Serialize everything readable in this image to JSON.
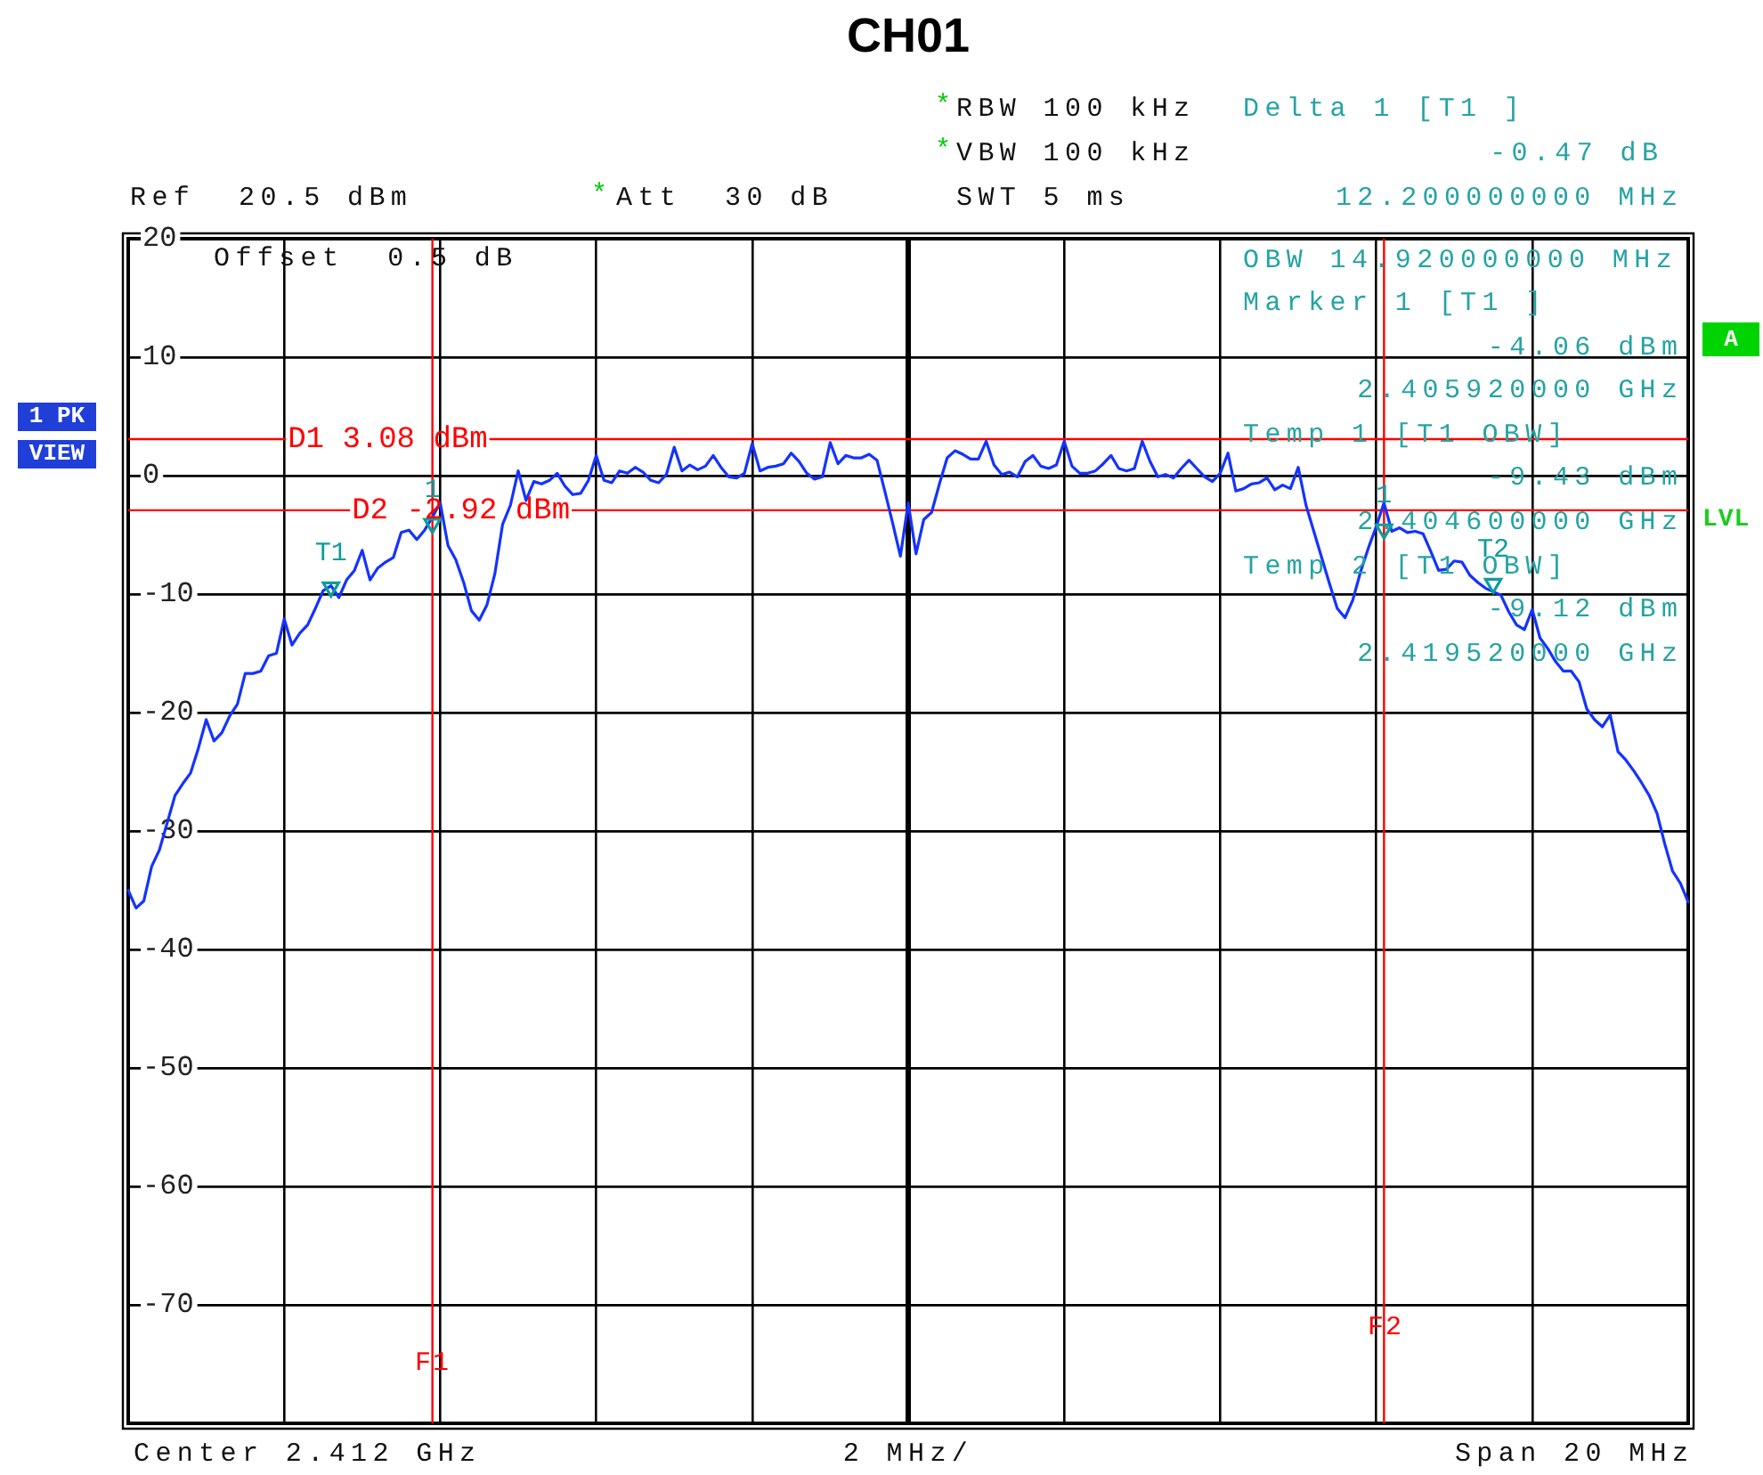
{
  "chart_data": {
    "type": "line",
    "title": "CH01",
    "xlabel": "2 MHz/",
    "categories": [
      null,
      null,
      null,
      null,
      null,
      null,
      null,
      null,
      null,
      null,
      null,
      null,
      null,
      null,
      null,
      null,
      null,
      null,
      null,
      null,
      null,
      null,
      null,
      null,
      null,
      null,
      null,
      null,
      null,
      null,
      null,
      null,
      null,
      null,
      null,
      null,
      null,
      null,
      null,
      null,
      null,
      null,
      null,
      null,
      null,
      null,
      null,
      null,
      null,
      null,
      null,
      null,
      null,
      null,
      null,
      null,
      null,
      null,
      null,
      null,
      null,
      null,
      null,
      null,
      null,
      null,
      null,
      null,
      null,
      null,
      null,
      null,
      null,
      null,
      null,
      null,
      null,
      null,
      null,
      null,
      null,
      null,
      null,
      null,
      null,
      null,
      null,
      null,
      null,
      null,
      null,
      null,
      null,
      null,
      null,
      null,
      null,
      null,
      null,
      null,
      null,
      null,
      null,
      null,
      null,
      null,
      null,
      null,
      null,
      null,
      null,
      null,
      null,
      null,
      null,
      null,
      null,
      null,
      null,
      null,
      null,
      null,
      null,
      null,
      null,
      null,
      null,
      null,
      null,
      null,
      null,
      null,
      null,
      null,
      null,
      null,
      null,
      null,
      null,
      null,
      null,
      null,
      null,
      null,
      null,
      null,
      null,
      null,
      null,
      null,
      null,
      null,
      null,
      null,
      null,
      null,
      null,
      null,
      null,
      null,
      null,
      null,
      null,
      null,
      null,
      null,
      null,
      null,
      null,
      null,
      null,
      null,
      null,
      null,
      null,
      null,
      null,
      null,
      null,
      null,
      null,
      null,
      null,
      null,
      null,
      null,
      null,
      null,
      null,
      null,
      null,
      null,
      null,
      null,
      null,
      null,
      null,
      null,
      null,
      null,
      null
    ],
    "ylim": [
      -80,
      20
    ],
    "yticks": [
      20,
      10,
      0,
      -10,
      -20,
      -30,
      -40,
      -50,
      -60,
      -70
    ],
    "grid": true,
    "tick_labels": "y",
    "series": [
      {
        "color": "#1433ff",
        "values": [
          -35.0,
          -36.5,
          -35.9,
          -33.0,
          -31.6,
          -29.3,
          -27.0,
          -26.0,
          -25.1,
          -23.0,
          -20.6,
          -22.4,
          -21.7,
          -20.3,
          -19.3,
          -16.7,
          -16.7,
          -16.5,
          -15.2,
          -15.0,
          -12.1,
          -14.3,
          -13.3,
          -12.6,
          -11.2,
          -9.7,
          -9.3,
          -10.3,
          -8.8,
          -8.0,
          -6.3,
          -8.8,
          -7.8,
          -7.3,
          -6.9,
          -4.8,
          -4.6,
          -5.4,
          -4.6,
          -3.5,
          -2.3,
          -5.9,
          -7.1,
          -9.0,
          -11.4,
          -12.2,
          -10.9,
          -8.3,
          -4.1,
          -2.5,
          0.4,
          -2.1,
          -0.5,
          -0.7,
          -0.4,
          0.2,
          -0.9,
          -1.6,
          -1.5,
          -0.4,
          1.7,
          -0.4,
          -0.6,
          0.4,
          0.2,
          0.7,
          0.3,
          -0.4,
          -0.6,
          0.1,
          2.4,
          0.4,
          0.9,
          0.5,
          0.8,
          1.7,
          0.7,
          -0.1,
          -0.2,
          0.2,
          2.7,
          0.4,
          0.7,
          0.8,
          1.0,
          1.9,
          1.2,
          0.2,
          -0.3,
          -0.1,
          2.8,
          1.0,
          1.7,
          1.5,
          1.5,
          1.8,
          1.3,
          -1.3,
          -4.0,
          -6.8,
          -2.3,
          -6.6,
          -3.7,
          -3.1,
          -0.7,
          1.5,
          2.1,
          1.8,
          1.4,
          1.4,
          2.9,
          0.9,
          0.1,
          0.3,
          -0.1,
          1.2,
          1.7,
          0.8,
          0.6,
          0.9,
          2.9,
          0.8,
          0.2,
          0.2,
          0.4,
          1.0,
          1.7,
          0.6,
          0.4,
          0.6,
          2.9,
          1.2,
          -0.1,
          0.1,
          -0.2,
          0.6,
          1.3,
          0.6,
          -0.1,
          -0.5,
          0.2,
          1.9,
          -1.3,
          -1.1,
          -0.7,
          -0.6,
          -0.2,
          -1.2,
          -0.8,
          -1.1,
          0.7,
          -2.5,
          -4.7,
          -6.9,
          -9.1,
          -11.2,
          -12.0,
          -10.5,
          -8.1,
          -6.1,
          -4.3,
          -2.3,
          -4.7,
          -4.4,
          -4.8,
          -4.7,
          -4.9,
          -6.4,
          -8.0,
          -7.9,
          -7.2,
          -7.3,
          -8.4,
          -9.0,
          -9.5,
          -9.8,
          -10.1,
          -11.5,
          -12.6,
          -13.0,
          -11.3,
          -13.7,
          -14.6,
          -15.7,
          -16.5,
          -16.5,
          -17.4,
          -19.7,
          -20.6,
          -21.2,
          -20.2,
          -23.3,
          -24.0,
          -24.9,
          -25.9,
          -27.0,
          -28.5,
          -31.1,
          -33.4,
          -34.4,
          -36.0
        ]
      },
      {
        "type": "scatter",
        "name": "T1",
        "marker": "triangle",
        "color": "#0e9c9c",
        "values": [
          null,
          null,
          null,
          null,
          null,
          null,
          null,
          null,
          null,
          null,
          null,
          null,
          null,
          null,
          null,
          null,
          null,
          null,
          null,
          null,
          null,
          null,
          null,
          null,
          null,
          null,
          -9.43,
          null,
          null,
          null,
          null,
          null,
          null,
          null,
          null,
          null,
          null,
          null,
          null,
          null,
          null,
          null,
          null,
          null,
          null,
          null,
          null,
          null,
          null,
          null,
          null,
          null,
          null,
          null,
          null,
          null,
          null,
          null,
          null,
          null,
          null,
          null,
          null,
          null,
          null,
          null,
          null,
          null,
          null,
          null,
          null,
          null,
          null,
          null,
          null,
          null,
          null,
          null,
          null,
          null,
          null,
          null,
          null,
          null,
          null,
          null,
          null,
          null,
          null,
          null,
          null,
          null,
          null,
          null,
          null,
          null,
          null,
          null,
          null,
          null,
          null,
          null,
          null,
          null,
          null,
          null,
          null,
          null,
          null,
          null,
          null,
          null,
          null,
          null,
          null,
          null,
          null,
          null,
          null,
          null,
          null,
          null,
          null,
          null,
          null,
          null,
          null,
          null,
          null,
          null,
          null,
          null,
          null,
          null,
          null,
          null,
          null,
          null,
          null,
          null,
          null,
          null,
          null,
          null,
          null,
          null,
          null,
          null,
          null,
          null,
          null,
          null,
          null,
          null,
          null,
          null,
          null,
          null,
          null,
          null,
          null,
          null,
          null,
          null,
          null,
          null,
          null,
          null,
          null,
          null,
          null,
          null,
          null,
          null,
          null,
          null,
          null,
          null,
          null,
          null,
          null,
          null,
          null,
          null,
          null,
          null,
          null,
          null,
          null,
          null,
          null,
          null,
          null,
          null,
          null,
          null,
          null,
          null,
          null,
          null,
          null
        ]
      },
      {
        "type": "scatter",
        "name": "1",
        "marker": "triangle",
        "color": "#0e9c9c",
        "values": [
          null,
          null,
          null,
          null,
          null,
          null,
          null,
          null,
          null,
          null,
          null,
          null,
          null,
          null,
          null,
          null,
          null,
          null,
          null,
          null,
          null,
          null,
          null,
          null,
          null,
          null,
          null,
          null,
          null,
          null,
          null,
          null,
          null,
          null,
          null,
          null,
          null,
          null,
          null,
          -4.06,
          null,
          null,
          null,
          null,
          null,
          null,
          null,
          null,
          null,
          null,
          null,
          null,
          null,
          null,
          null,
          null,
          null,
          null,
          null,
          null,
          null,
          null,
          null,
          null,
          null,
          null,
          null,
          null,
          null,
          null,
          null,
          null,
          null,
          null,
          null,
          null,
          null,
          null,
          null,
          null,
          null,
          null,
          null,
          null,
          null,
          null,
          null,
          null,
          null,
          null,
          null,
          null,
          null,
          null,
          null,
          null,
          null,
          null,
          null,
          null,
          null,
          null,
          null,
          null,
          null,
          null,
          null,
          null,
          null,
          null,
          null,
          null,
          null,
          null,
          null,
          null,
          null,
          null,
          null,
          null,
          null,
          null,
          null,
          null,
          null,
          null,
          null,
          null,
          null,
          null,
          null,
          null,
          null,
          null,
          null,
          null,
          null,
          null,
          null,
          null,
          null,
          null,
          null,
          null,
          null,
          null,
          null,
          null,
          null,
          null,
          null,
          null,
          null,
          null,
          null,
          null,
          null,
          null,
          null,
          null,
          null,
          null,
          null,
          null,
          null,
          null,
          null,
          null,
          null,
          null,
          null,
          null,
          null,
          null,
          null,
          null,
          null,
          null,
          null,
          null,
          null,
          null,
          null,
          null,
          null,
          null,
          null,
          null,
          null,
          null,
          null,
          null,
          null,
          null,
          null,
          null,
          null,
          null,
          null,
          null,
          null
        ]
      },
      {
        "type": "scatter",
        "name": "1",
        "marker": "triangle",
        "color": "#0e9c9c",
        "values": [
          null,
          null,
          null,
          null,
          null,
          null,
          null,
          null,
          null,
          null,
          null,
          null,
          null,
          null,
          null,
          null,
          null,
          null,
          null,
          null,
          null,
          null,
          null,
          null,
          null,
          null,
          null,
          null,
          null,
          null,
          null,
          null,
          null,
          null,
          null,
          null,
          null,
          null,
          null,
          null,
          null,
          null,
          null,
          null,
          null,
          null,
          null,
          null,
          null,
          null,
          null,
          null,
          null,
          null,
          null,
          null,
          null,
          null,
          null,
          null,
          null,
          null,
          null,
          null,
          null,
          null,
          null,
          null,
          null,
          null,
          null,
          null,
          null,
          null,
          null,
          null,
          null,
          null,
          null,
          null,
          null,
          null,
          null,
          null,
          null,
          null,
          null,
          null,
          null,
          null,
          null,
          null,
          null,
          null,
          null,
          null,
          null,
          null,
          null,
          null,
          null,
          null,
          null,
          null,
          null,
          null,
          null,
          null,
          null,
          null,
          null,
          null,
          null,
          null,
          null,
          null,
          null,
          null,
          null,
          null,
          null,
          null,
          null,
          null,
          null,
          null,
          null,
          null,
          null,
          null,
          null,
          null,
          null,
          null,
          null,
          null,
          null,
          null,
          null,
          null,
          null,
          null,
          null,
          null,
          null,
          null,
          null,
          null,
          null,
          null,
          null,
          null,
          null,
          null,
          null,
          null,
          null,
          null,
          null,
          null,
          null,
          -4.53,
          null,
          null,
          null,
          null,
          null,
          null,
          null,
          null,
          null,
          null,
          null,
          null,
          null,
          null,
          null,
          null,
          null,
          null,
          null,
          null,
          null,
          null,
          null,
          null,
          null,
          null,
          null,
          null,
          null,
          null,
          null,
          null,
          null,
          null,
          null,
          null,
          null,
          null,
          null
        ]
      },
      {
        "type": "scatter",
        "name": "T2",
        "marker": "triangle",
        "color": "#0e9c9c",
        "values": [
          null,
          null,
          null,
          null,
          null,
          null,
          null,
          null,
          null,
          null,
          null,
          null,
          null,
          null,
          null,
          null,
          null,
          null,
          null,
          null,
          null,
          null,
          null,
          null,
          null,
          null,
          null,
          null,
          null,
          null,
          null,
          null,
          null,
          null,
          null,
          null,
          null,
          null,
          null,
          null,
          null,
          null,
          null,
          null,
          null,
          null,
          null,
          null,
          null,
          null,
          null,
          null,
          null,
          null,
          null,
          null,
          null,
          null,
          null,
          null,
          null,
          null,
          null,
          null,
          null,
          null,
          null,
          null,
          null,
          null,
          null,
          null,
          null,
          null,
          null,
          null,
          null,
          null,
          null,
          null,
          null,
          null,
          null,
          null,
          null,
          null,
          null,
          null,
          null,
          null,
          null,
          null,
          null,
          null,
          null,
          null,
          null,
          null,
          null,
          null,
          null,
          null,
          null,
          null,
          null,
          null,
          null,
          null,
          null,
          null,
          null,
          null,
          null,
          null,
          null,
          null,
          null,
          null,
          null,
          null,
          null,
          null,
          null,
          null,
          null,
          null,
          null,
          null,
          null,
          null,
          null,
          null,
          null,
          null,
          null,
          null,
          null,
          null,
          null,
          null,
          null,
          null,
          null,
          null,
          null,
          null,
          null,
          null,
          null,
          null,
          null,
          null,
          null,
          null,
          null,
          null,
          null,
          null,
          null,
          null,
          null,
          null,
          null,
          null,
          null,
          null,
          null,
          null,
          null,
          null,
          null,
          null,
          null,
          null,
          null,
          -9.12,
          null,
          null,
          null,
          null,
          null,
          null,
          null,
          null,
          null,
          null,
          null,
          null,
          null,
          null,
          null,
          null,
          null,
          null,
          null,
          null,
          null,
          null,
          null,
          null,
          null
        ]
      }
    ],
    "ref_lines": [
      {
        "axis": "y",
        "value": 3.08,
        "label": "D1 3.08 dBm",
        "color": "#ff0000"
      },
      {
        "axis": "y",
        "value": -2.92,
        "label": "D2 -2.92 dBm",
        "color": "#ff0000"
      }
    ],
    "annotations": [
      "*",
      "RBW 100 kHz",
      "Delta 1 [T1 ]",
      "*",
      "VBW 100 kHz",
      "-0.47 dB",
      "Ref  20.5 dBm",
      "*",
      "Att  30 dB",
      "SWT 5 ms",
      "12.200000000 MHz",
      "Offset  0.5 dB",
      "OBW 14.920000000 MHz",
      "Marker 1 [T1 ]",
      "-4.06 dBm",
      "2.405920000 GHz",
      "Temp 1 [T1 OBW]",
      "-9.43 dBm",
      "2.404600000 GHz",
      "Temp 2 [T1 OBW]",
      "-9.12 dBm",
      "2.419520000 GHz",
      "1 PK",
      "VIEW",
      "A",
      "LVL",
      "Center 2.412 GHz",
      "Span 20 MHz",
      "F1",
      "F2"
    ]
  }
}
